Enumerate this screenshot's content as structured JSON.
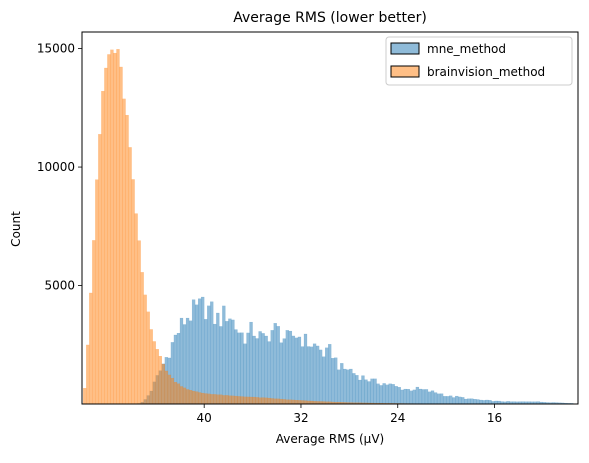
{
  "chart_data": {
    "type": "histogram",
    "title": "Average RMS (lower better)",
    "xlabel": "Average RMS (μV)",
    "ylabel": "Count",
    "x_axis_reversed": true,
    "xlim": [
      50.1,
      9.1
    ],
    "ylim": [
      0,
      15700
    ],
    "x_ticks": [
      40,
      32,
      24,
      16
    ],
    "x_tick_labels": [
      "40",
      "32",
      "24",
      "16"
    ],
    "y_ticks": [
      5000,
      10000,
      15000
    ],
    "y_tick_labels": [
      "5000",
      "10000",
      "15000"
    ],
    "legend_position": "upper right",
    "bin_width_uV": 0.25,
    "series": [
      {
        "name": "mne_method",
        "color": "#1f77b4",
        "fill_opacity": 0.5,
        "profile": [
          [
            45.5,
            0
          ],
          [
            45.0,
            100
          ],
          [
            44.5,
            450
          ],
          [
            43.9,
            1100
          ],
          [
            43.0,
            2100
          ],
          [
            42.4,
            2800
          ],
          [
            42.0,
            3200
          ],
          [
            41.4,
            3700
          ],
          [
            40.8,
            3900
          ],
          [
            40.0,
            4150
          ],
          [
            39.5,
            3950
          ],
          [
            39.0,
            3550
          ],
          [
            38.5,
            3650
          ],
          [
            38.0,
            3900
          ],
          [
            37.5,
            3350
          ],
          [
            37.0,
            3000
          ],
          [
            36.5,
            2800
          ],
          [
            36.0,
            3150
          ],
          [
            35.5,
            2900
          ],
          [
            35.0,
            2650
          ],
          [
            34.5,
            3100
          ],
          [
            34.0,
            3150
          ],
          [
            33.5,
            2850
          ],
          [
            33.0,
            2700
          ],
          [
            32.5,
            2950
          ],
          [
            32.0,
            2800
          ],
          [
            31.5,
            2600
          ],
          [
            31.0,
            2500
          ],
          [
            30.5,
            2350
          ],
          [
            30.0,
            2050
          ],
          [
            29.5,
            2300
          ],
          [
            29.0,
            1700
          ],
          [
            28.5,
            1450
          ],
          [
            28.0,
            1500
          ],
          [
            27.5,
            1250
          ],
          [
            27.0,
            1150
          ],
          [
            26.5,
            1050
          ],
          [
            26.0,
            950
          ],
          [
            25.5,
            900
          ],
          [
            25.0,
            850
          ],
          [
            24.5,
            800
          ],
          [
            24.0,
            700
          ],
          [
            23.5,
            650
          ],
          [
            23.0,
            600
          ],
          [
            22.5,
            650
          ],
          [
            22.0,
            600
          ],
          [
            21.5,
            550
          ],
          [
            21.0,
            500
          ],
          [
            20.5,
            450
          ],
          [
            20.0,
            350
          ],
          [
            19.5,
            300
          ],
          [
            19.0,
            300
          ],
          [
            18.5,
            250
          ],
          [
            18.0,
            200
          ],
          [
            17.5,
            200
          ],
          [
            17.0,
            150
          ],
          [
            16.5,
            150
          ],
          [
            16.0,
            120
          ],
          [
            15.0,
            100
          ],
          [
            14.0,
            90
          ],
          [
            13.0,
            110
          ],
          [
            12.0,
            80
          ],
          [
            11.0,
            60
          ],
          [
            10.0,
            40
          ],
          [
            9.5,
            20
          ],
          [
            9.2,
            0
          ]
        ]
      },
      {
        "name": "brainvision_method",
        "color": "#ff7f0e",
        "fill_opacity": 0.5,
        "profile": [
          [
            50.0,
            0
          ],
          [
            49.8,
            1100
          ],
          [
            49.5,
            3600
          ],
          [
            49.3,
            5400
          ],
          [
            49.0,
            8100
          ],
          [
            48.8,
            9900
          ],
          [
            48.5,
            12400
          ],
          [
            48.3,
            13600
          ],
          [
            48.0,
            14500
          ],
          [
            47.8,
            14800
          ],
          [
            47.5,
            14950
          ],
          [
            47.3,
            14900
          ],
          [
            47.0,
            14400
          ],
          [
            46.8,
            13700
          ],
          [
            46.5,
            12700
          ],
          [
            46.3,
            11600
          ],
          [
            46.0,
            10100
          ],
          [
            45.8,
            8700
          ],
          [
            45.5,
            7600
          ],
          [
            45.3,
            6200
          ],
          [
            45.0,
            5100
          ],
          [
            44.8,
            4300
          ],
          [
            44.5,
            3600
          ],
          [
            44.3,
            3000
          ],
          [
            44.0,
            2500
          ],
          [
            43.5,
            1800
          ],
          [
            43.0,
            1300
          ],
          [
            42.5,
            1000
          ],
          [
            42.0,
            800
          ],
          [
            41.5,
            650
          ],
          [
            41.0,
            550
          ],
          [
            40.0,
            450
          ],
          [
            39.0,
            400
          ],
          [
            38.0,
            350
          ],
          [
            37.0,
            320
          ],
          [
            36.0,
            290
          ],
          [
            35.0,
            260
          ],
          [
            34.0,
            220
          ],
          [
            33.0,
            180
          ],
          [
            32.0,
            150
          ],
          [
            31.0,
            120
          ],
          [
            30.0,
            100
          ],
          [
            29.0,
            80
          ],
          [
            28.0,
            60
          ],
          [
            26.0,
            40
          ],
          [
            24.0,
            25
          ],
          [
            22.0,
            15
          ],
          [
            20.0,
            8
          ],
          [
            18.0,
            0
          ]
        ]
      }
    ]
  }
}
